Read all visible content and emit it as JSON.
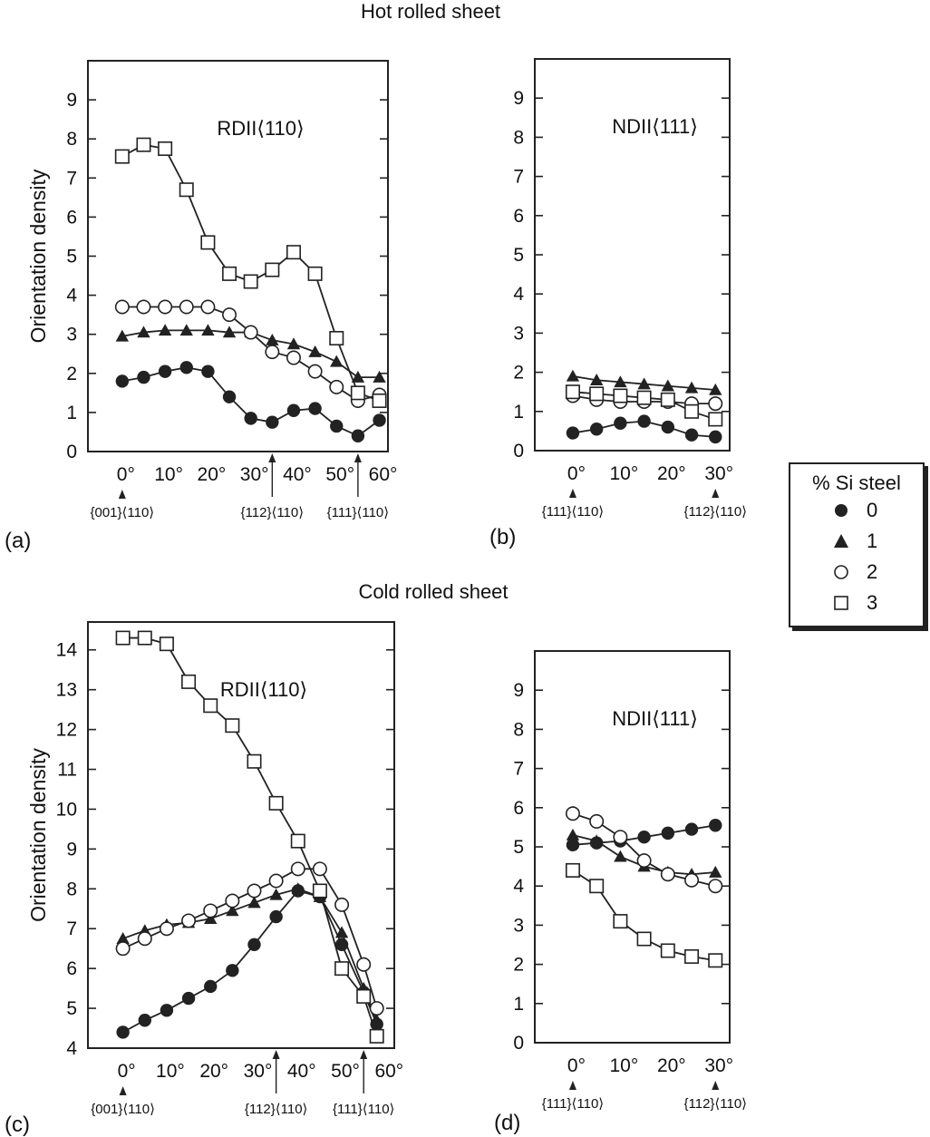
{
  "headings": {
    "hot": "Hot rolled sheet",
    "cold": "Cold rolled sheet"
  },
  "legend": {
    "title": "% Si steel",
    "items": [
      {
        "label": "0",
        "marker": "filled-circle"
      },
      {
        "label": "1",
        "marker": "filled-triangle"
      },
      {
        "label": "2",
        "marker": "open-circle"
      },
      {
        "label": "3",
        "marker": "open-square"
      }
    ]
  },
  "chart_data": [
    {
      "panel": "(a)",
      "type": "line",
      "title": "RDII⟨110⟩",
      "ylabel": "Orientation density",
      "xlim": [
        -8,
        62
      ],
      "ylim": [
        0,
        10
      ],
      "yticks": [
        0,
        1,
        2,
        3,
        4,
        5,
        6,
        7,
        8,
        9
      ],
      "xticks": [
        {
          "v": 0,
          "t": "0°"
        },
        {
          "v": 10,
          "t": "10°"
        },
        {
          "v": 20,
          "t": "20°"
        },
        {
          "v": 30,
          "t": "30°"
        },
        {
          "v": 40,
          "t": "40°"
        },
        {
          "v": 50,
          "t": "50°"
        },
        {
          "v": 60,
          "t": "60°"
        }
      ],
      "annotations": [
        {
          "x": 0,
          "text": "{001}⟨110⟩",
          "arrow": "tri"
        },
        {
          "x": 35,
          "text": "{112}⟨110⟩",
          "arrow": "line"
        },
        {
          "x": 55,
          "text": "{111}⟨110⟩",
          "arrow": "line"
        }
      ],
      "series": [
        {
          "name": "0",
          "x": [
            0,
            5,
            10,
            15,
            20,
            25,
            30,
            35,
            40,
            45,
            50,
            55,
            60
          ],
          "y": [
            1.8,
            1.9,
            2.05,
            2.15,
            2.05,
            1.4,
            0.85,
            0.75,
            1.05,
            1.1,
            0.65,
            0.4,
            0.8
          ]
        },
        {
          "name": "1",
          "x": [
            0,
            5,
            10,
            15,
            20,
            25,
            30,
            35,
            40,
            45,
            50,
            55,
            60
          ],
          "y": [
            2.95,
            3.05,
            3.1,
            3.1,
            3.1,
            3.05,
            3.05,
            2.85,
            2.75,
            2.55,
            2.3,
            1.9,
            1.9
          ]
        },
        {
          "name": "2",
          "x": [
            0,
            5,
            10,
            15,
            20,
            25,
            30,
            35,
            40,
            45,
            50,
            55,
            60
          ],
          "y": [
            3.7,
            3.7,
            3.7,
            3.7,
            3.7,
            3.5,
            3.05,
            2.55,
            2.4,
            2.05,
            1.65,
            1.3,
            1.45
          ]
        },
        {
          "name": "3",
          "x": [
            0,
            5,
            10,
            15,
            20,
            25,
            30,
            35,
            40,
            45,
            50,
            55,
            60
          ],
          "y": [
            7.55,
            7.85,
            7.75,
            6.7,
            5.35,
            4.55,
            4.35,
            4.65,
            5.1,
            4.55,
            2.9,
            1.5,
            1.3
          ]
        }
      ]
    },
    {
      "panel": "(b)",
      "type": "line",
      "title": "NDII⟨111⟩",
      "ylabel": "",
      "xlim": [
        -8,
        33
      ],
      "ylim": [
        0,
        10
      ],
      "yticks": [
        0,
        1,
        2,
        3,
        4,
        5,
        6,
        7,
        8,
        9
      ],
      "xticks": [
        {
          "v": 0,
          "t": "0°"
        },
        {
          "v": 10,
          "t": "10°"
        },
        {
          "v": 20,
          "t": "20°"
        },
        {
          "v": 30,
          "t": "30°"
        }
      ],
      "annotations": [
        {
          "x": 0,
          "text": "{111}⟨110⟩",
          "arrow": "tri"
        },
        {
          "x": 30,
          "text": "{112}⟨110⟩",
          "arrow": "tri"
        }
      ],
      "series": [
        {
          "name": "0",
          "x": [
            0,
            5,
            10,
            15,
            20,
            25,
            30
          ],
          "y": [
            0.45,
            0.55,
            0.7,
            0.75,
            0.6,
            0.4,
            0.35
          ]
        },
        {
          "name": "1",
          "x": [
            0,
            5,
            10,
            15,
            20,
            25,
            30
          ],
          "y": [
            1.9,
            1.8,
            1.75,
            1.7,
            1.65,
            1.6,
            1.55
          ]
        },
        {
          "name": "2",
          "x": [
            0,
            5,
            10,
            15,
            20,
            25,
            30
          ],
          "y": [
            1.4,
            1.3,
            1.25,
            1.25,
            1.25,
            1.2,
            1.2
          ]
        },
        {
          "name": "3",
          "x": [
            0,
            5,
            10,
            15,
            20,
            25,
            30
          ],
          "y": [
            1.5,
            1.45,
            1.4,
            1.35,
            1.3,
            1.0,
            0.8
          ]
        }
      ]
    },
    {
      "panel": "(c)",
      "type": "line",
      "title": "RDII⟨110⟩",
      "ylabel": "Orientation density",
      "xlim": [
        -8,
        62
      ],
      "ylim": [
        4,
        14.7
      ],
      "yticks": [
        4,
        5,
        6,
        7,
        8,
        9,
        10,
        11,
        12,
        13,
        14
      ],
      "xticks": [
        {
          "v": 0,
          "t": "0°"
        },
        {
          "v": 10,
          "t": "10°"
        },
        {
          "v": 20,
          "t": "20°"
        },
        {
          "v": 30,
          "t": "30°"
        },
        {
          "v": 40,
          "t": "40°"
        },
        {
          "v": 50,
          "t": "50°"
        },
        {
          "v": 60,
          "t": "60°"
        }
      ],
      "annotations": [
        {
          "x": 0,
          "text": "{001}⟨110⟩",
          "arrow": "tri"
        },
        {
          "x": 35,
          "text": "{112}⟨110⟩",
          "arrow": "line"
        },
        {
          "x": 55,
          "text": "{111}⟨110⟩",
          "arrow": "line"
        }
      ],
      "series": [
        {
          "name": "0",
          "x": [
            0,
            5,
            10,
            15,
            20,
            25,
            30,
            35,
            40,
            45,
            50,
            55,
            58
          ],
          "y": [
            4.4,
            4.7,
            4.95,
            5.25,
            5.55,
            5.95,
            6.6,
            7.3,
            7.95,
            7.8,
            6.6,
            5.4,
            4.6
          ]
        },
        {
          "name": "1",
          "x": [
            0,
            5,
            10,
            15,
            20,
            25,
            30,
            35,
            40,
            45,
            50,
            55,
            58
          ],
          "y": [
            6.75,
            6.95,
            7.1,
            7.15,
            7.25,
            7.45,
            7.65,
            7.85,
            8.0,
            7.8,
            6.9,
            5.5,
            4.7
          ]
        },
        {
          "name": "2",
          "x": [
            0,
            5,
            10,
            15,
            20,
            25,
            30,
            35,
            40,
            45,
            50,
            55,
            58
          ],
          "y": [
            6.5,
            6.75,
            7.0,
            7.2,
            7.45,
            7.7,
            7.95,
            8.2,
            8.5,
            8.5,
            7.6,
            6.1,
            5.0
          ]
        },
        {
          "name": "3",
          "x": [
            0,
            5,
            10,
            15,
            20,
            25,
            30,
            35,
            40,
            45,
            50,
            55,
            58
          ],
          "y": [
            14.3,
            14.3,
            14.15,
            13.2,
            12.6,
            12.1,
            11.2,
            10.15,
            9.2,
            7.95,
            6.0,
            5.3,
            4.3
          ]
        }
      ]
    },
    {
      "panel": "(d)",
      "type": "line",
      "title": "NDII⟨111⟩",
      "ylabel": "",
      "xlim": [
        -8,
        33
      ],
      "ylim": [
        0,
        10
      ],
      "yticks": [
        0,
        1,
        2,
        3,
        4,
        5,
        6,
        7,
        8,
        9
      ],
      "xticks": [
        {
          "v": 0,
          "t": "0°"
        },
        {
          "v": 10,
          "t": "10°"
        },
        {
          "v": 20,
          "t": "20°"
        },
        {
          "v": 30,
          "t": "30°"
        }
      ],
      "annotations": [
        {
          "x": 0,
          "text": "{111}⟨110⟩",
          "arrow": "tri"
        },
        {
          "x": 30,
          "text": "{112}⟨110⟩",
          "arrow": "tri"
        }
      ],
      "series": [
        {
          "name": "0",
          "x": [
            0,
            5,
            10,
            15,
            20,
            25,
            30
          ],
          "y": [
            5.05,
            5.1,
            5.15,
            5.25,
            5.35,
            5.45,
            5.55
          ]
        },
        {
          "name": "1",
          "x": [
            0,
            5,
            10,
            15,
            20,
            25,
            30
          ],
          "y": [
            5.3,
            5.15,
            4.75,
            4.5,
            4.35,
            4.3,
            4.35
          ]
        },
        {
          "name": "2",
          "x": [
            0,
            5,
            10,
            15,
            20,
            25,
            30
          ],
          "y": [
            5.85,
            5.65,
            5.25,
            4.65,
            4.3,
            4.15,
            4.0
          ]
        },
        {
          "name": "3",
          "x": [
            0,
            5,
            10,
            15,
            20,
            25,
            30
          ],
          "y": [
            4.4,
            4.0,
            3.1,
            2.65,
            2.35,
            2.2,
            2.1
          ]
        }
      ]
    }
  ]
}
